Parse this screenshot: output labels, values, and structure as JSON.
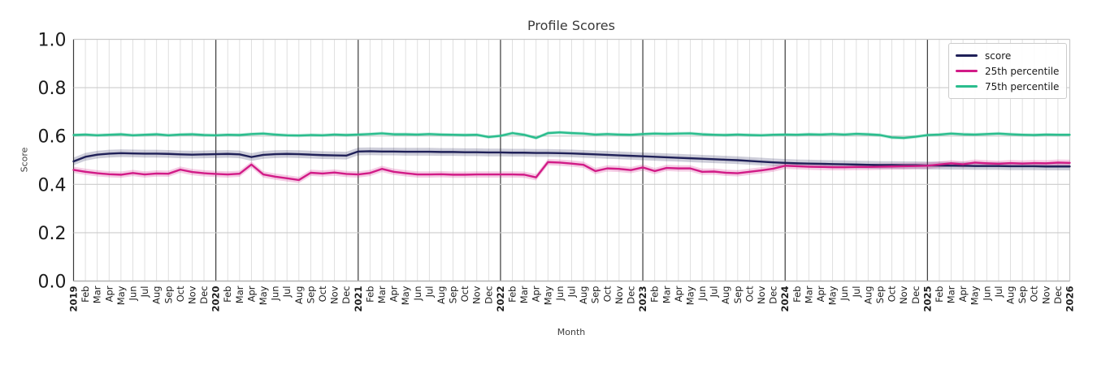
{
  "chart_data": {
    "type": "line",
    "title": "Profile Scores",
    "xlabel": "Month",
    "ylabel": "Score",
    "ylim": [
      0.0,
      1.0
    ],
    "yticks": [
      0.0,
      0.2,
      0.4,
      0.6,
      0.8,
      1.0
    ],
    "grid": true,
    "legend_position": "upper right",
    "x_labels": [
      "2019",
      "Feb",
      "Mar",
      "Apr",
      "May",
      "Jun",
      "Jul",
      "Aug",
      "Sep",
      "Oct",
      "Nov",
      "Dec",
      "2020",
      "Feb",
      "Mar",
      "Apr",
      "May",
      "Jun",
      "Jul",
      "Aug",
      "Sep",
      "Oct",
      "Nov",
      "Dec",
      "2021",
      "Feb",
      "Mar",
      "Apr",
      "May",
      "Jun",
      "Jul",
      "Aug",
      "Sep",
      "Oct",
      "Nov",
      "Dec",
      "2022",
      "Feb",
      "Mar",
      "Apr",
      "May",
      "Jun",
      "Jul",
      "Aug",
      "Sep",
      "Oct",
      "Nov",
      "Dec",
      "2023",
      "Feb",
      "Mar",
      "Apr",
      "May",
      "Jun",
      "Jul",
      "Aug",
      "Sep",
      "Oct",
      "Nov",
      "Dec",
      "2024",
      "Feb",
      "Mar",
      "Apr",
      "May",
      "Jun",
      "Jul",
      "Aug",
      "Sep",
      "Oct",
      "Nov",
      "Dec",
      "2025",
      "Feb",
      "Mar",
      "Apr",
      "May",
      "Jun",
      "Jul",
      "Aug",
      "Sep",
      "Oct",
      "Nov",
      "Dec",
      "2026"
    ],
    "series": [
      {
        "name": "score",
        "color": "#1f2058",
        "band": 0.016,
        "band_opacity": 0.22,
        "values": [
          0.495,
          0.514,
          0.523,
          0.527,
          0.529,
          0.528,
          0.527,
          0.527,
          0.526,
          0.524,
          0.523,
          0.524,
          0.525,
          0.526,
          0.524,
          0.513,
          0.522,
          0.525,
          0.526,
          0.525,
          0.523,
          0.521,
          0.52,
          0.519,
          0.536,
          0.537,
          0.536,
          0.536,
          0.535,
          0.535,
          0.535,
          0.534,
          0.534,
          0.533,
          0.533,
          0.532,
          0.532,
          0.531,
          0.531,
          0.53,
          0.53,
          0.529,
          0.528,
          0.526,
          0.524,
          0.522,
          0.52,
          0.518,
          0.516,
          0.514,
          0.512,
          0.51,
          0.508,
          0.506,
          0.504,
          0.502,
          0.5,
          0.497,
          0.494,
          0.491,
          0.489,
          0.487,
          0.486,
          0.485,
          0.484,
          0.483,
          0.482,
          0.481,
          0.48,
          0.48,
          0.479,
          0.479,
          0.478,
          0.478,
          0.477,
          0.477,
          0.476,
          0.476,
          0.476,
          0.475,
          0.475,
          0.475,
          0.474,
          0.474,
          0.474
        ]
      },
      {
        "name": "25th percentile",
        "color": "#d21b87",
        "band": 0.013,
        "band_opacity": 0.22,
        "values": [
          0.46,
          0.452,
          0.446,
          0.442,
          0.44,
          0.447,
          0.441,
          0.445,
          0.444,
          0.461,
          0.451,
          0.446,
          0.443,
          0.441,
          0.444,
          0.482,
          0.441,
          0.432,
          0.425,
          0.418,
          0.448,
          0.445,
          0.449,
          0.443,
          0.441,
          0.447,
          0.464,
          0.452,
          0.446,
          0.441,
          0.441,
          0.442,
          0.44,
          0.44,
          0.441,
          0.441,
          0.441,
          0.441,
          0.44,
          0.429,
          0.492,
          0.49,
          0.486,
          0.481,
          0.455,
          0.466,
          0.464,
          0.459,
          0.47,
          0.455,
          0.468,
          0.466,
          0.466,
          0.452,
          0.453,
          0.448,
          0.446,
          0.452,
          0.458,
          0.465,
          0.477,
          0.475,
          0.473,
          0.472,
          0.471,
          0.471,
          0.472,
          0.472,
          0.473,
          0.474,
          0.475,
          0.476,
          0.477,
          0.482,
          0.487,
          0.483,
          0.49,
          0.487,
          0.485,
          0.488,
          0.486,
          0.488,
          0.487,
          0.49,
          0.489
        ]
      },
      {
        "name": "75th percentile",
        "color": "#2abd8d",
        "band": 0.007,
        "band_opacity": 0.28,
        "values": [
          0.604,
          0.606,
          0.603,
          0.605,
          0.607,
          0.603,
          0.605,
          0.607,
          0.603,
          0.606,
          0.607,
          0.604,
          0.603,
          0.605,
          0.604,
          0.608,
          0.61,
          0.606,
          0.603,
          0.602,
          0.604,
          0.603,
          0.606,
          0.604,
          0.606,
          0.608,
          0.611,
          0.607,
          0.607,
          0.606,
          0.608,
          0.606,
          0.605,
          0.604,
          0.605,
          0.596,
          0.601,
          0.612,
          0.605,
          0.592,
          0.612,
          0.615,
          0.612,
          0.61,
          0.606,
          0.608,
          0.606,
          0.605,
          0.608,
          0.61,
          0.609,
          0.61,
          0.611,
          0.607,
          0.605,
          0.604,
          0.606,
          0.604,
          0.603,
          0.605,
          0.606,
          0.605,
          0.607,
          0.606,
          0.608,
          0.606,
          0.609,
          0.607,
          0.604,
          0.594,
          0.592,
          0.597,
          0.604,
          0.606,
          0.61,
          0.607,
          0.606,
          0.608,
          0.61,
          0.607,
          0.605,
          0.604,
          0.606,
          0.605,
          0.605
        ]
      }
    ]
  }
}
